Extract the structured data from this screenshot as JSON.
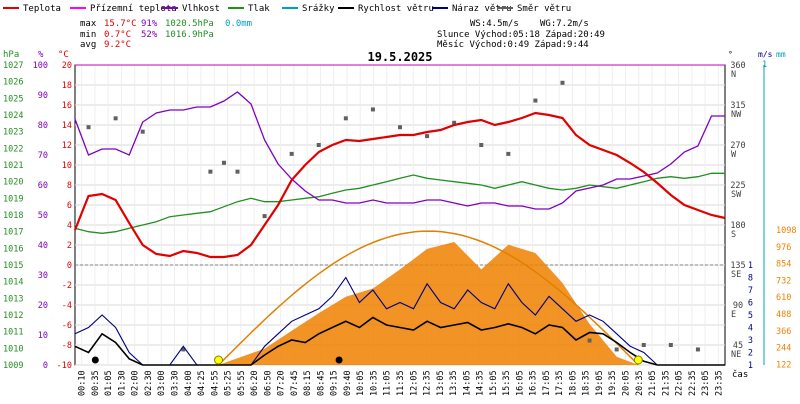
{
  "legend": [
    {
      "label": "Teplota",
      "color": "#e00000"
    },
    {
      "label": "Přízemní teplota",
      "color": "#ff00ff"
    },
    {
      "label": "Vlhkost",
      "color": "#8000c0"
    },
    {
      "label": "Tlak",
      "color": "#209020"
    },
    {
      "label": "Srážky",
      "color": "#00a0c0"
    },
    {
      "label": "Rychlost větru",
      "color": "#000000"
    },
    {
      "label": "Náraz větru",
      "color": "#000080"
    },
    {
      "label": "Směr větru",
      "color": "#606060"
    }
  ],
  "stats": {
    "max_label": "max",
    "min_label": "min",
    "avg_label": "avg",
    "max_temp": "15.7°C",
    "max_hum": "91%",
    "max_press": "1020.5hPa",
    "max_rain": "0.0mm",
    "min_temp": "0.7°C",
    "min_hum": "52%",
    "min_press": "1016.9hPa",
    "avg_temp": "9.2°C"
  },
  "info": {
    "ws": "WS:4.5m/s",
    "wg": "WG:7.2m/s",
    "sun": "Slunce Východ:05:18  Západ:20:49",
    "moon": "Měsíc  Východ:0:49  Západ:9:44"
  },
  "colors": {
    "temp": "#e00000",
    "hum": "#8000c0",
    "press": "#209020",
    "rain": "#00a0c0",
    "wind": "#000000",
    "gust": "#000080",
    "dir": "#606060",
    "sun": "#f08000",
    "sunarc": "#e08000"
  },
  "chart_data": {
    "type": "line",
    "title": "19.5.2025",
    "xlabel": "čas",
    "x_ticks": [
      "00:10",
      "00:35",
      "01:05",
      "01:30",
      "02:00",
      "02:30",
      "03:00",
      "03:30",
      "04:00",
      "04:25",
      "04:55",
      "05:25",
      "05:55",
      "06:20",
      "06:50",
      "07:20",
      "07:45",
      "08:15",
      "08:45",
      "09:15",
      "09:40",
      "10:05",
      "10:35",
      "11:05",
      "11:35",
      "12:05",
      "12:35",
      "13:05",
      "13:35",
      "14:05",
      "14:35",
      "15:05",
      "15:35",
      "16:05",
      "16:35",
      "17:05",
      "17:35",
      "18:05",
      "18:35",
      "19:05",
      "19:35",
      "20:05",
      "20:35",
      "21:05",
      "21:35",
      "22:05",
      "22:35",
      "23:05",
      "23:35"
    ],
    "axes": {
      "hpa": {
        "label": "hPa",
        "ticks": [
          "1027",
          "1026",
          "1025",
          "1024",
          "1023",
          "1022",
          "1021",
          "1020",
          "1019",
          "1018",
          "1017",
          "1016",
          "1015",
          "1014",
          "1013",
          "1012",
          "1011",
          "1010",
          "1009"
        ],
        "range": [
          1009,
          1027
        ]
      },
      "percent": {
        "label": "%",
        "ticks": [
          "100",
          "90",
          "80",
          "70",
          "60",
          "50",
          "40",
          "30",
          "20",
          "10",
          "0"
        ],
        "range": [
          0,
          100
        ]
      },
      "temp": {
        "label": "°C",
        "ticks": [
          "20",
          "18",
          "16",
          "14",
          "12",
          "10",
          "8",
          "6",
          "4",
          "2",
          "0",
          "-2",
          "-4",
          "-6",
          "-8",
          "-10"
        ],
        "range": [
          -10,
          20
        ]
      },
      "dir": {
        "label": "°",
        "ticks": [
          "360",
          "315",
          "270",
          "225",
          "180",
          "135",
          "90",
          "45"
        ],
        "cardinals": [
          "N",
          "NW",
          "W",
          "SW",
          "S",
          "SE",
          "E",
          "NE"
        ]
      },
      "ms": {
        "label": "m/s",
        "ticks": [
          "1",
          "8",
          "7",
          "6",
          "5",
          "4",
          "3",
          "2",
          "1"
        ]
      },
      "mm": {
        "label": "mm",
        "ticks": [
          "1"
        ]
      },
      "sun": {
        "ticks": [
          "1098",
          "976",
          "854",
          "732",
          "610",
          "488",
          "366",
          "244",
          "122"
        ]
      }
    },
    "series": [
      {
        "name": "Teplota",
        "unit": "°C",
        "x": [
          0,
          0.5,
          1,
          1.5,
          2,
          2.5,
          3,
          3.5,
          4,
          4.5,
          5,
          5.5,
          6,
          6.5,
          7,
          7.5,
          8,
          8.5,
          9,
          9.5,
          10,
          10.5,
          11,
          11.5,
          12,
          12.5,
          13,
          13.5,
          14,
          14.5,
          15,
          15.5,
          16,
          16.5,
          17,
          17.5,
          18,
          18.5,
          19,
          19.5,
          20,
          20.5,
          21,
          21.5,
          22,
          22.5,
          23,
          23.5,
          24
        ],
        "y": [
          3.5,
          6.9,
          7.1,
          6.5,
          4.2,
          2.0,
          1.1,
          0.9,
          1.4,
          1.2,
          0.8,
          0.8,
          1.0,
          2.0,
          4.0,
          6.0,
          8.5,
          10.0,
          11.3,
          12.0,
          12.5,
          12.4,
          12.6,
          12.8,
          13.0,
          13.0,
          13.3,
          13.5,
          14.0,
          14.3,
          14.5,
          14.0,
          14.3,
          14.7,
          15.2,
          15.0,
          14.7,
          13.0,
          12.0,
          11.5,
          11.0,
          10.2,
          9.3,
          8.2,
          7.0,
          6.0,
          5.5,
          5.0,
          4.7
        ]
      },
      {
        "name": "Vlhkost",
        "unit": "%",
        "x": [
          0,
          0.5,
          1,
          1.5,
          2,
          2.5,
          3,
          3.5,
          4,
          4.5,
          5,
          5.5,
          6,
          6.5,
          7,
          7.5,
          8,
          8.5,
          9,
          9.5,
          10,
          10.5,
          11,
          11.5,
          12,
          12.5,
          13,
          13.5,
          14,
          14.5,
          15,
          15.5,
          16,
          16.5,
          17,
          17.5,
          18,
          18.5,
          19,
          19.5,
          20,
          20.5,
          21,
          21.5,
          22,
          22.5,
          23,
          23.5,
          24
        ],
        "y": [
          82,
          70,
          72,
          72,
          70,
          81,
          84,
          85,
          85,
          86,
          86,
          88,
          91,
          87,
          75,
          67,
          62,
          58,
          55,
          55,
          54,
          54,
          55,
          54,
          54,
          54,
          55,
          55,
          54,
          53,
          54,
          54,
          53,
          53,
          52,
          52,
          54,
          58,
          59,
          60,
          62,
          62,
          63,
          64,
          67,
          71,
          73,
          83,
          83
        ]
      },
      {
        "name": "Tlak",
        "unit": "hPa",
        "x": [
          0,
          0.5,
          1,
          1.5,
          2,
          2.5,
          3,
          3.5,
          4,
          4.5,
          5,
          5.5,
          6,
          6.5,
          7,
          7.5,
          8,
          8.5,
          9,
          9.5,
          10,
          10.5,
          11,
          11.5,
          12,
          12.5,
          13,
          13.5,
          14,
          14.5,
          15,
          15.5,
          16,
          16.5,
          17,
          17.5,
          18,
          18.5,
          19,
          19.5,
          20,
          20.5,
          21,
          21.5,
          22,
          22.5,
          23,
          23.5,
          24
        ],
        "y": [
          1017.2,
          1017.0,
          1016.9,
          1017.0,
          1017.2,
          1017.4,
          1017.6,
          1017.9,
          1018.0,
          1018.1,
          1018.2,
          1018.5,
          1018.8,
          1019.0,
          1018.8,
          1018.8,
          1018.9,
          1019.0,
          1019.1,
          1019.3,
          1019.5,
          1019.6,
          1019.8,
          1020.0,
          1020.2,
          1020.4,
          1020.2,
          1020.1,
          1020.0,
          1019.9,
          1019.8,
          1019.6,
          1019.8,
          1020.0,
          1019.8,
          1019.6,
          1019.5,
          1019.6,
          1019.8,
          1019.7,
          1019.6,
          1019.8,
          1020.0,
          1020.2,
          1020.3,
          1020.2,
          1020.3,
          1020.5,
          1020.5
        ]
      },
      {
        "name": "Rychlost větru",
        "unit": "m/s",
        "x": [
          0,
          0.5,
          1,
          1.5,
          2,
          2.5,
          3,
          3.5,
          4,
          4.5,
          5,
          5.5,
          6,
          6.5,
          7,
          7.5,
          8,
          8.5,
          9,
          9.5,
          10,
          10.5,
          11,
          11.5,
          12,
          12.5,
          13,
          13.5,
          14,
          14.5,
          15,
          15.5,
          16,
          16.5,
          17,
          17.5,
          18,
          18.5,
          19,
          19.5,
          20,
          20.5,
          21,
          21.5,
          22,
          22.5,
          23,
          23.5,
          24
        ],
        "y": [
          1.5,
          1.0,
          2.5,
          1.8,
          0.5,
          0,
          0,
          0,
          0,
          0,
          0,
          0,
          0,
          0,
          0.8,
          1.5,
          2.0,
          1.8,
          2.5,
          3.0,
          3.5,
          3.0,
          3.8,
          3.2,
          3.0,
          2.8,
          3.5,
          3.0,
          3.2,
          3.4,
          2.8,
          3.0,
          3.3,
          3.0,
          2.5,
          3.2,
          3.0,
          2.0,
          2.6,
          2.5,
          1.8,
          1.0,
          0.3,
          0,
          0,
          0,
          0,
          0,
          0
        ]
      },
      {
        "name": "Náraz větru",
        "unit": "m/s",
        "x": [
          0,
          0.5,
          1,
          1.5,
          2,
          2.5,
          3,
          3.5,
          4,
          4.5,
          5,
          5.5,
          6,
          6.5,
          7,
          7.5,
          8,
          8.5,
          9,
          9.5,
          10,
          10.5,
          11,
          11.5,
          12,
          12.5,
          13,
          13.5,
          14,
          14.5,
          15,
          15.5,
          16,
          16.5,
          17,
          17.5,
          18,
          18.5,
          19,
          19.5,
          20,
          20.5,
          21,
          21.5,
          22,
          22.5,
          23,
          23.5,
          24
        ],
        "y": [
          2.5,
          3.0,
          4.0,
          3.0,
          1.0,
          0,
          0,
          0,
          1.5,
          0,
          0,
          0,
          0,
          0,
          1.5,
          2.5,
          3.5,
          4.0,
          4.5,
          5.5,
          7.0,
          5.0,
          6.0,
          4.5,
          5.0,
          4.5,
          6.5,
          5.0,
          4.5,
          6.0,
          5.0,
          4.5,
          6.5,
          5.0,
          4.0,
          5.5,
          4.5,
          3.5,
          4.0,
          3.5,
          2.5,
          1.5,
          1.0,
          0,
          0,
          0,
          0,
          0,
          0
        ]
      },
      {
        "name": "Směr větru",
        "unit": "°",
        "x": [
          0.5,
          1.5,
          2.5,
          4,
          5,
          5.5,
          6,
          7,
          8,
          9,
          10,
          11,
          12,
          13,
          14,
          15,
          16,
          17,
          18,
          19,
          20,
          21,
          22,
          23
        ],
        "y": [
          290,
          300,
          285,
          40,
          240,
          250,
          240,
          190,
          260,
          270,
          300,
          310,
          290,
          280,
          295,
          270,
          260,
          320,
          340,
          50,
          40,
          45,
          45,
          40
        ]
      },
      {
        "name": "Sluneční záření",
        "unit": "W/m²",
        "x": [
          5.3,
          7,
          8,
          9,
          10,
          11,
          12,
          13,
          14,
          15,
          16,
          17,
          18,
          19,
          20,
          20.8
        ],
        "y": [
          0,
          120,
          250,
          380,
          500,
          560,
          700,
          850,
          900,
          700,
          880,
          820,
          600,
          300,
          60,
          0
        ]
      }
    ]
  }
}
